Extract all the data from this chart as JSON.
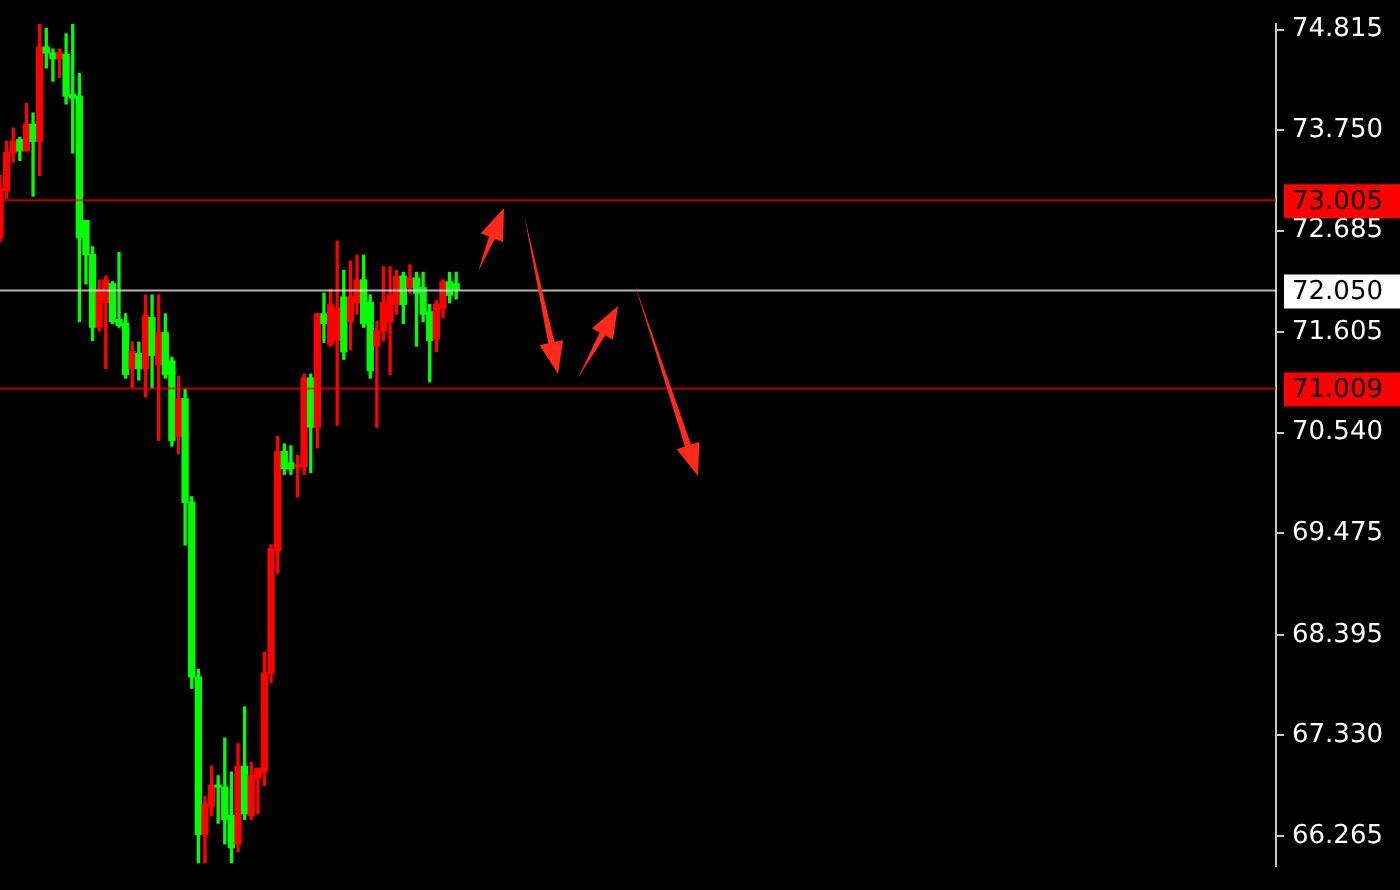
{
  "chart_data": {
    "type": "candlestick",
    "categories": [
      null,
      null,
      null,
      null,
      null,
      null,
      null,
      null,
      null,
      null,
      null,
      null,
      null,
      null,
      null,
      null,
      null,
      null,
      null,
      null,
      null,
      null,
      null,
      null,
      null,
      null,
      null,
      null,
      null,
      null,
      null,
      null,
      null,
      null,
      null,
      null,
      null,
      null,
      null,
      null,
      null,
      null,
      null,
      null,
      null,
      null,
      null,
      null,
      null,
      null,
      null,
      null,
      null,
      null,
      null,
      null,
      null,
      null,
      null,
      null,
      null,
      null,
      null,
      null,
      null,
      null,
      null,
      null,
      null,
      null,
      null,
      null,
      null,
      null,
      null,
      null,
      null,
      null,
      null,
      null,
      null,
      null,
      null,
      null,
      null,
      null,
      null,
      null,
      null,
      null,
      null,
      null,
      null,
      null,
      null,
      null,
      null,
      null,
      null,
      null,
      null,
      null,
      null,
      null,
      null,
      null,
      null,
      null,
      null,
      null,
      null,
      null,
      null,
      null,
      null,
      null,
      null,
      null,
      null,
      null,
      null,
      null,
      null,
      null,
      null,
      null,
      null,
      null,
      null,
      null,
      null,
      null,
      null,
      null,
      null,
      null,
      null,
      null,
      null,
      null,
      null,
      null,
      null,
      null,
      null,
      null,
      null,
      null,
      null,
      null,
      null,
      null,
      null,
      null,
      null,
      null,
      null,
      null,
      null,
      null,
      null,
      null,
      null,
      null,
      null,
      null,
      null,
      null,
      null,
      null,
      null,
      null,
      null,
      null,
      null,
      null,
      null,
      null,
      null,
      null,
      null,
      null,
      null,
      null,
      null,
      null,
      null,
      null,
      null,
      null,
      null,
      null,
      null,
      null
    ],
    "ohlc": [
      [
        72.61,
        73.27,
        72.57,
        73.13
      ],
      [
        73.11,
        73.63,
        73.03,
        73.51
      ],
      [
        73.51,
        73.77,
        73.41,
        73.63
      ],
      [
        73.65,
        73.67,
        73.43,
        73.53
      ],
      [
        73.53,
        74.03,
        73.53,
        73.81
      ],
      [
        73.81,
        73.93,
        73.05,
        73.63
      ],
      [
        73.63,
        74.87,
        73.27,
        74.63
      ],
      [
        74.63,
        74.83,
        74.41,
        74.57
      ],
      [
        74.57,
        74.61,
        74.27,
        74.51
      ],
      [
        74.51,
        74.61,
        74.31,
        74.57
      ],
      [
        74.55,
        74.77,
        74.03,
        74.11
      ],
      [
        74.13,
        74.87,
        73.51,
        74.09
      ],
      [
        74.11,
        74.35,
        71.72,
        72.61
      ],
      [
        72.79,
        72.79,
        72.12,
        72.43
      ],
      [
        72.43,
        72.51,
        71.52,
        71.66
      ],
      [
        71.66,
        72.16,
        71.62,
        72.06
      ],
      [
        71.92,
        72.2,
        71.22,
        72.16
      ],
      [
        72.12,
        72.14,
        71.7,
        71.72
      ],
      [
        71.74,
        72.45,
        71.66,
        71.68
      ],
      [
        71.7,
        71.8,
        71.12,
        71.16
      ],
      [
        71.22,
        71.5,
        71.02,
        71.4
      ],
      [
        71.38,
        71.5,
        71.1,
        71.22
      ],
      [
        71.22,
        72.0,
        70.92,
        71.78
      ],
      [
        71.76,
        72.0,
        71.02,
        71.36
      ],
      [
        71.26,
        72.0,
        70.46,
        71.6
      ],
      [
        71.6,
        71.8,
        71.12,
        71.16
      ],
      [
        71.3,
        71.34,
        70.4,
        70.46
      ],
      [
        70.5,
        71.14,
        70.32,
        70.9
      ],
      [
        70.9,
        71.0,
        69.35,
        69.8
      ],
      [
        69.8,
        69.86,
        67.83,
        67.95
      ],
      [
        67.95,
        68.03,
        65.98,
        66.28
      ],
      [
        66.28,
        66.68,
        65.98,
        66.6
      ],
      [
        66.58,
        67.0,
        66.48,
        66.8
      ],
      [
        66.8,
        66.9,
        66.4,
        66.78
      ],
      [
        66.78,
        67.3,
        66.18,
        66.44
      ],
      [
        66.48,
        66.94,
        65.98,
        66.14
      ],
      [
        66.18,
        67.24,
        66.1,
        67.0
      ],
      [
        67.0,
        67.63,
        66.44,
        66.5
      ],
      [
        66.48,
        67.04,
        66.44,
        66.9
      ],
      [
        66.88,
        66.98,
        66.5,
        66.98
      ],
      [
        66.94,
        68.21,
        66.8,
        67.99
      ],
      [
        67.99,
        69.35,
        67.89,
        69.31
      ],
      [
        69.29,
        70.5,
        69.05,
        70.34
      ],
      [
        70.34,
        70.42,
        70.1,
        70.16
      ],
      [
        70.22,
        70.4,
        70.1,
        70.16
      ],
      [
        70.18,
        70.3,
        69.86,
        70.2
      ],
      [
        70.18,
        71.16,
        70.1,
        71.12
      ],
      [
        71.12,
        71.16,
        70.12,
        70.6
      ],
      [
        70.6,
        71.8,
        70.38,
        71.8
      ],
      [
        71.8,
        72.02,
        71.5,
        71.7
      ],
      [
        71.48,
        72.06,
        71.46,
        71.9
      ],
      [
        71.52,
        72.57,
        70.62,
        71.86
      ],
      [
        71.98,
        72.26,
        71.32,
        71.4
      ],
      [
        71.72,
        72.36,
        71.42,
        71.98
      ],
      [
        71.92,
        72.42,
        71.8,
        72.16
      ],
      [
        72.16,
        72.42,
        71.66,
        71.7
      ],
      [
        71.92,
        72.0,
        71.12,
        71.2
      ],
      [
        71.46,
        71.72,
        70.6,
        71.62
      ],
      [
        71.62,
        72.3,
        71.52,
        71.92
      ],
      [
        71.72,
        72.3,
        71.16,
        72.0
      ],
      [
        71.9,
        72.26,
        71.8,
        72.2
      ],
      [
        72.2,
        72.24,
        71.7,
        71.9
      ],
      [
        72.08,
        72.32,
        72.02,
        72.18
      ],
      [
        72.18,
        72.24,
        71.46,
        72.02
      ],
      [
        72.08,
        72.24,
        71.72,
        71.8
      ],
      [
        71.82,
        71.9,
        71.08,
        71.52
      ],
      [
        71.54,
        71.94,
        71.4,
        71.9
      ],
      [
        71.86,
        72.16,
        71.76,
        72.14
      ],
      [
        72.14,
        72.24,
        71.92,
        72.0
      ],
      [
        72.12,
        72.24,
        71.96,
        72.06
      ],
      null,
      null,
      null,
      null,
      null,
      null,
      null,
      null,
      null,
      null,
      null,
      null,
      null,
      null,
      null,
      null,
      null,
      null,
      null,
      null,
      null,
      null,
      null,
      null,
      null,
      null,
      null,
      null,
      null,
      null,
      null,
      null,
      null,
      null,
      null,
      null,
      null,
      null,
      null,
      null,
      null,
      null,
      null,
      null,
      null,
      null,
      null,
      null,
      null,
      null,
      null,
      null,
      null,
      null,
      null,
      null,
      null,
      null,
      null,
      null,
      null,
      null,
      null,
      null,
      null,
      null,
      null,
      null,
      null,
      null,
      null,
      null,
      null,
      null,
      null,
      null,
      null,
      null,
      null,
      null,
      null,
      null,
      null,
      null,
      null,
      null,
      null,
      null,
      null,
      null,
      null,
      null,
      null,
      null,
      null,
      null,
      null,
      null,
      null,
      null,
      null,
      null,
      null,
      null,
      null,
      null,
      null,
      null,
      null,
      null,
      null,
      null,
      null,
      null,
      null,
      null,
      null,
      null,
      null,
      null,
      null,
      null,
      null,
      null
    ],
    "colors": [
      "#ff0000",
      "#ff0000",
      "#ff0000",
      "#00ff00",
      "#ff0000",
      "#00ff00",
      "#ff0000",
      "#00ff00",
      "#00ff00",
      "#ff0000",
      "#00ff00",
      "#00ff00",
      "#00ff00",
      "#00ff00",
      "#00ff00",
      "#ff0000",
      "#ff0000",
      "#00ff00",
      "#00ff00",
      "#00ff00",
      "#ff0000",
      "#00ff00",
      "#ff0000",
      "#00ff00",
      "#ff0000",
      "#00ff00",
      "#00ff00",
      "#ff0000",
      "#00ff00",
      "#00ff00",
      "#00ff00",
      "#ff0000",
      "#ff0000",
      "#00ff00",
      "#00ff00",
      "#00ff00",
      "#ff0000",
      "#00ff00",
      "#ff0000",
      "#ff0000",
      "#ff0000",
      "#ff0000",
      "#ff0000",
      "#00ff00",
      "#00ff00",
      "#ff0000",
      "#ff0000",
      "#00ff00",
      "#ff0000",
      "#00ff00",
      "#ff0000",
      "#ff0000",
      "#00ff00",
      "#ff0000",
      "#ff0000",
      "#00ff00",
      "#00ff00",
      "#ff0000",
      "#ff0000",
      "#ff0000",
      "#ff0000",
      "#00ff00",
      "#ff0000",
      "#00ff00",
      "#00ff00",
      "#00ff00",
      "#ff0000",
      "#ff0000",
      "#00ff00",
      "#00ff00",
      null,
      null,
      null,
      null,
      null,
      null,
      null,
      null,
      null,
      null,
      null,
      null,
      null,
      null,
      null,
      null,
      null,
      null,
      null,
      null,
      null,
      null,
      null,
      null,
      null,
      null,
      null,
      null,
      null,
      null,
      null,
      null,
      null,
      null,
      null,
      null,
      null,
      null,
      null,
      null,
      null,
      null,
      null,
      null,
      null,
      null,
      null,
      null,
      null,
      null,
      null,
      null,
      null,
      null,
      null,
      null,
      null,
      null,
      null,
      null,
      null,
      null,
      null,
      null,
      null,
      null,
      null,
      null,
      null,
      null,
      null,
      null,
      null,
      null,
      null,
      null,
      null,
      null,
      null,
      null,
      null,
      null,
      null,
      null,
      null,
      null,
      null,
      null,
      null,
      null,
      null,
      null,
      null,
      null,
      null,
      null,
      null,
      null,
      null,
      null,
      null,
      null,
      null,
      null,
      null,
      null,
      null,
      null,
      null,
      null,
      null,
      null,
      null,
      null,
      null,
      null,
      null,
      null,
      null,
      null,
      null,
      null,
      null,
      null
    ],
    "ylim": [
      65.94,
      74.88
    ],
    "yticks": [
      74.815,
      {
        "value": 73.75,
        "label": "73.750"
      },
      72.685,
      71.605,
      {
        "value": 70.54,
        "label": "70.540"
      },
      69.475,
      68.395,
      {
        "value": 67.33,
        "label": "67.330"
      },
      66.265
    ],
    "ref_lines": [
      {
        "axis": "y",
        "value": 73.005,
        "label": "73.005",
        "color": "#ff0000"
      },
      {
        "axis": "y",
        "value": 72.05,
        "label": "72.050",
        "color": "#ffffff"
      },
      {
        "axis": "y",
        "value": 71.009,
        "label": "71.009",
        "color": "#ff0000"
      }
    ],
    "tick_labels": "y",
    "grid": false,
    "legend": false
  }
}
